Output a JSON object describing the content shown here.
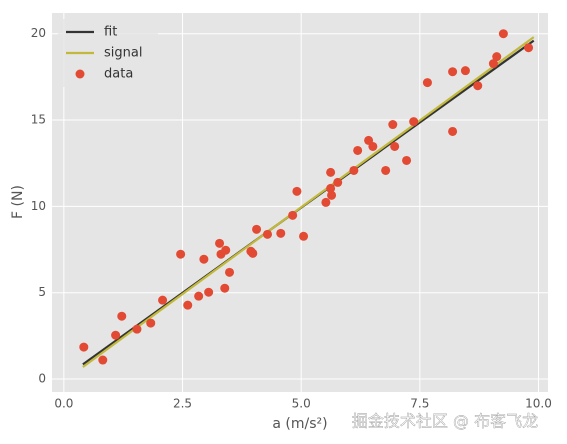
{
  "chart_data": {
    "type": "scatter",
    "xlabel": "a (m/s²)",
    "ylabel": "F (N)",
    "watermark": "掘金技术社区 @ 布客飞龙",
    "xlim": [
      -0.25,
      10.2
    ],
    "ylim": [
      -0.75,
      21.2
    ],
    "xticks": [
      {
        "value": 0,
        "label": "0.0"
      },
      2.5,
      {
        "value": 5,
        "label": "5.0"
      },
      7.5,
      {
        "value": 10,
        "label": "10.0"
      }
    ],
    "yticks": [
      0,
      5,
      10,
      15,
      20
    ],
    "grid": true,
    "legend": "upper left",
    "background": "#e5e5e5",
    "series": [
      {
        "name": "fit",
        "type": "line",
        "color": "#333333",
        "x": [
          0.4,
          9.9
        ],
        "values": [
          0.85,
          19.6
        ]
      },
      {
        "name": "signal",
        "type": "line",
        "color": "#c2b83a",
        "x": [
          0.4,
          9.9
        ],
        "values": [
          0.7,
          19.8
        ]
      },
      {
        "name": "data",
        "type": "scatter",
        "color": "#e24a33",
        "x": [
          0.42,
          0.82,
          1.09,
          1.22,
          1.54,
          1.83,
          2.08,
          2.46,
          2.61,
          2.84,
          2.95,
          3.05,
          3.28,
          3.31,
          3.39,
          3.41,
          3.49,
          3.94,
          3.98,
          4.06,
          4.29,
          4.57,
          4.82,
          4.91,
          5.05,
          5.52,
          5.62,
          5.62,
          5.64,
          5.77,
          6.11,
          6.19,
          6.42,
          6.51,
          6.78,
          6.93,
          6.97,
          7.22,
          7.37,
          7.66,
          8.19,
          8.19,
          8.46,
          8.72,
          9.05,
          9.12,
          9.26,
          9.79
        ],
        "values": [
          1.85,
          1.1,
          2.54,
          3.64,
          2.89,
          3.24,
          4.57,
          7.23,
          4.28,
          4.8,
          6.94,
          5.03,
          7.86,
          7.23,
          5.26,
          7.46,
          6.18,
          7.4,
          7.28,
          8.67,
          8.38,
          8.44,
          9.48,
          10.87,
          8.27,
          10.23,
          11.97,
          11.04,
          10.64,
          11.39,
          12.08,
          13.24,
          13.82,
          13.47,
          12.08,
          14.74,
          13.47,
          12.66,
          14.91,
          17.17,
          17.8,
          14.34,
          17.86,
          16.99,
          18.27,
          18.67,
          20,
          19.19
        ]
      }
    ]
  }
}
